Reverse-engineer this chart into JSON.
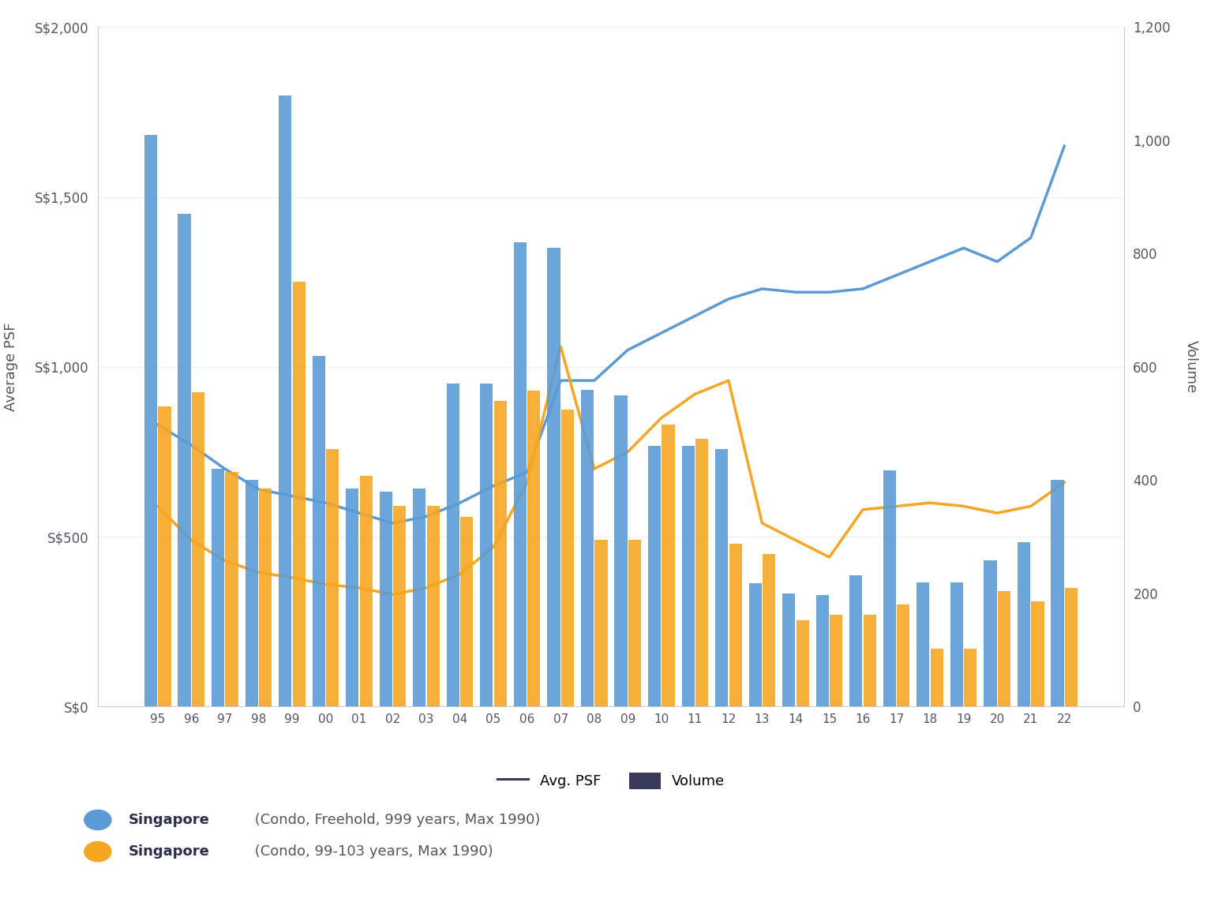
{
  "years": [
    "95",
    "96",
    "97",
    "98",
    "99",
    "00",
    "01",
    "02",
    "03",
    "04",
    "05",
    "06",
    "07",
    "08",
    "09",
    "10",
    "11",
    "12",
    "13",
    "14",
    "15",
    "16",
    "17",
    "18",
    "19",
    "20",
    "21",
    "22"
  ],
  "freehold_vol": [
    1010,
    870,
    420,
    400,
    1080,
    620,
    385,
    380,
    385,
    570,
    570,
    820,
    810,
    560,
    550,
    460,
    460,
    455,
    218,
    200,
    197,
    232,
    418,
    220,
    220,
    258,
    290,
    400
  ],
  "leasehold_vol": [
    530,
    555,
    415,
    385,
    750,
    455,
    408,
    355,
    355,
    335,
    540,
    558,
    525,
    295,
    295,
    498,
    473,
    288,
    270,
    152,
    162,
    162,
    180,
    102,
    102,
    204,
    186,
    210
  ],
  "freehold_psf": [
    830,
    770,
    700,
    640,
    620,
    600,
    570,
    540,
    560,
    600,
    650,
    690,
    960,
    960,
    1050,
    1100,
    1150,
    1200,
    1230,
    1220,
    1220,
    1230,
    1270,
    1310,
    1350,
    1310,
    1380,
    1650
  ],
  "leasehold_psf": [
    590,
    490,
    430,
    395,
    380,
    360,
    350,
    330,
    350,
    390,
    470,
    660,
    1060,
    700,
    750,
    850,
    920,
    960,
    540,
    490,
    440,
    580,
    590,
    600,
    590,
    570,
    590,
    660
  ],
  "blue_color": "#5B9BD5",
  "orange_color": "#F5A623",
  "ylabel_left": "Average PSF",
  "ylabel_right": "Volume",
  "ylim_left": [
    0,
    2000
  ],
  "ylim_right": [
    0,
    1200
  ],
  "ytick_labels_left": [
    "S$0",
    "S$500",
    "S$1,000",
    "S$1,500",
    "S$2,000"
  ],
  "ytick_vals_left": [
    0,
    500,
    1000,
    1500,
    2000
  ],
  "ytick_labels_right": [
    "0",
    "200",
    "400",
    "600",
    "800",
    "1,000",
    "1,200"
  ],
  "ytick_vals_right": [
    0,
    200,
    400,
    600,
    800,
    1000,
    1200
  ],
  "legend1_label": "Avg. PSF",
  "legend2_label": "Volume",
  "series1_bold": "Singapore",
  "series1_normal": " (Condo, Freehold, 999 years, Max 1990)",
  "series2_bold": "Singapore",
  "series2_normal": " (Condo, 99-103 years, Max 1990)",
  "background_color": "#ffffff",
  "spine_color": "#cccccc",
  "tick_label_color": "#555566",
  "grid_color": "#eeeeee"
}
